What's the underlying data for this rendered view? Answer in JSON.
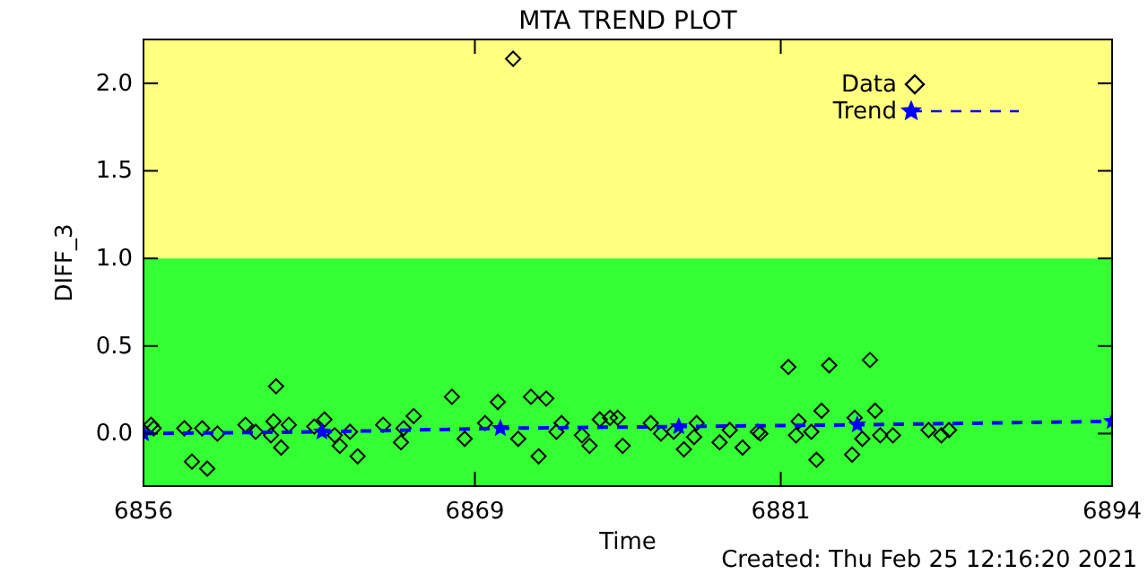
{
  "chart_data": {
    "type": "scatter",
    "title": "MTA TREND PLOT",
    "xlabel": "Time",
    "ylabel": "DIFF_3",
    "xlim": [
      6856,
      6894
    ],
    "ylim": [
      -0.3,
      2.25
    ],
    "xticks": [
      6856,
      6869,
      6881,
      6894
    ],
    "yticks": [
      {
        "value": 0,
        "label": "0.0"
      },
      {
        "value": 0.5,
        "label": "0.5"
      },
      {
        "value": 1,
        "label": "1.0"
      },
      {
        "value": 1.5,
        "label": "1.5"
      },
      {
        "value": 2,
        "label": "2.0"
      }
    ],
    "bands": [
      {
        "axis": "y",
        "from": -0.3,
        "to": 1,
        "color": "#33ff33"
      },
      {
        "axis": "y",
        "from": 1,
        "to": 2.25,
        "color": "#ffff80"
      }
    ],
    "legend": "top right",
    "grid": false,
    "annotations": [
      "Created: Thu Feb 25 12:16:20 2021"
    ],
    "series": [
      {
        "name": "Data",
        "marker": "diamond",
        "color": "#000000",
        "x": [
          6856.3,
          6856.4,
          6857.6,
          6857.9,
          6858.3,
          6858.5,
          6858.9,
          6860.0,
          6860.4,
          6861.2,
          6861.1,
          6861.0,
          6861.4,
          6861.7,
          6862.7,
          6863.1,
          6863.5,
          6863.7,
          6864.1,
          6864.4,
          6865.4,
          6866.1,
          6866.6,
          6866.2,
          6868.1,
          6868.6,
          6869.4,
          6869.9,
          6870.5,
          6870.7,
          6871.2,
          6871.5,
          6871.8,
          6872.2,
          6872.4,
          6873.2,
          6873.5,
          6873.9,
          6874.3,
          6874.6,
          6874.8,
          6875.9,
          6876.3,
          6876.8,
          6877.2,
          6877.6,
          6877.7,
          6878.6,
          6879.0,
          6879.5,
          6880.1,
          6880.2,
          6881.3,
          6881.6,
          6881.7,
          6882.2,
          6882.4,
          6882.6,
          6882.9,
          6883.8,
          6883.9,
          6884.2,
          6884.5,
          6884.7,
          6884.9,
          6885.4,
          6886.8,
          6887.3,
          6887.6
        ],
        "values": [
          0.05,
          0.03,
          0.03,
          -0.16,
          0.03,
          -0.2,
          0.0,
          0.05,
          0.01,
          0.27,
          0.07,
          -0.01,
          -0.08,
          0.05,
          0.04,
          0.08,
          -0.01,
          -0.07,
          0.01,
          -0.13,
          0.05,
          -0.05,
          0.1,
          0.03,
          0.21,
          -0.03,
          0.06,
          0.18,
          2.14,
          -0.03,
          0.21,
          -0.13,
          0.2,
          0.01,
          0.06,
          -0.01,
          -0.07,
          0.08,
          0.09,
          0.09,
          -0.07,
          0.06,
          0.0,
          0.01,
          -0.09,
          -0.02,
          0.06,
          -0.05,
          0.02,
          -0.08,
          0.01,
          0.0,
          0.38,
          -0.01,
          0.07,
          0.01,
          -0.15,
          0.13,
          0.39,
          -0.12,
          0.09,
          -0.03,
          0.42,
          0.13,
          -0.01,
          -0.01,
          0.02,
          -0.01,
          0.02
        ]
      },
      {
        "name": "Trend",
        "type": "line",
        "marker": "star",
        "line_style": "dashed",
        "color": "#0000ff",
        "x": [
          6856,
          6863,
          6870,
          6877,
          6884,
          6894
        ],
        "values": [
          0.0,
          0.01,
          0.03,
          0.04,
          0.05,
          0.07
        ]
      }
    ]
  }
}
